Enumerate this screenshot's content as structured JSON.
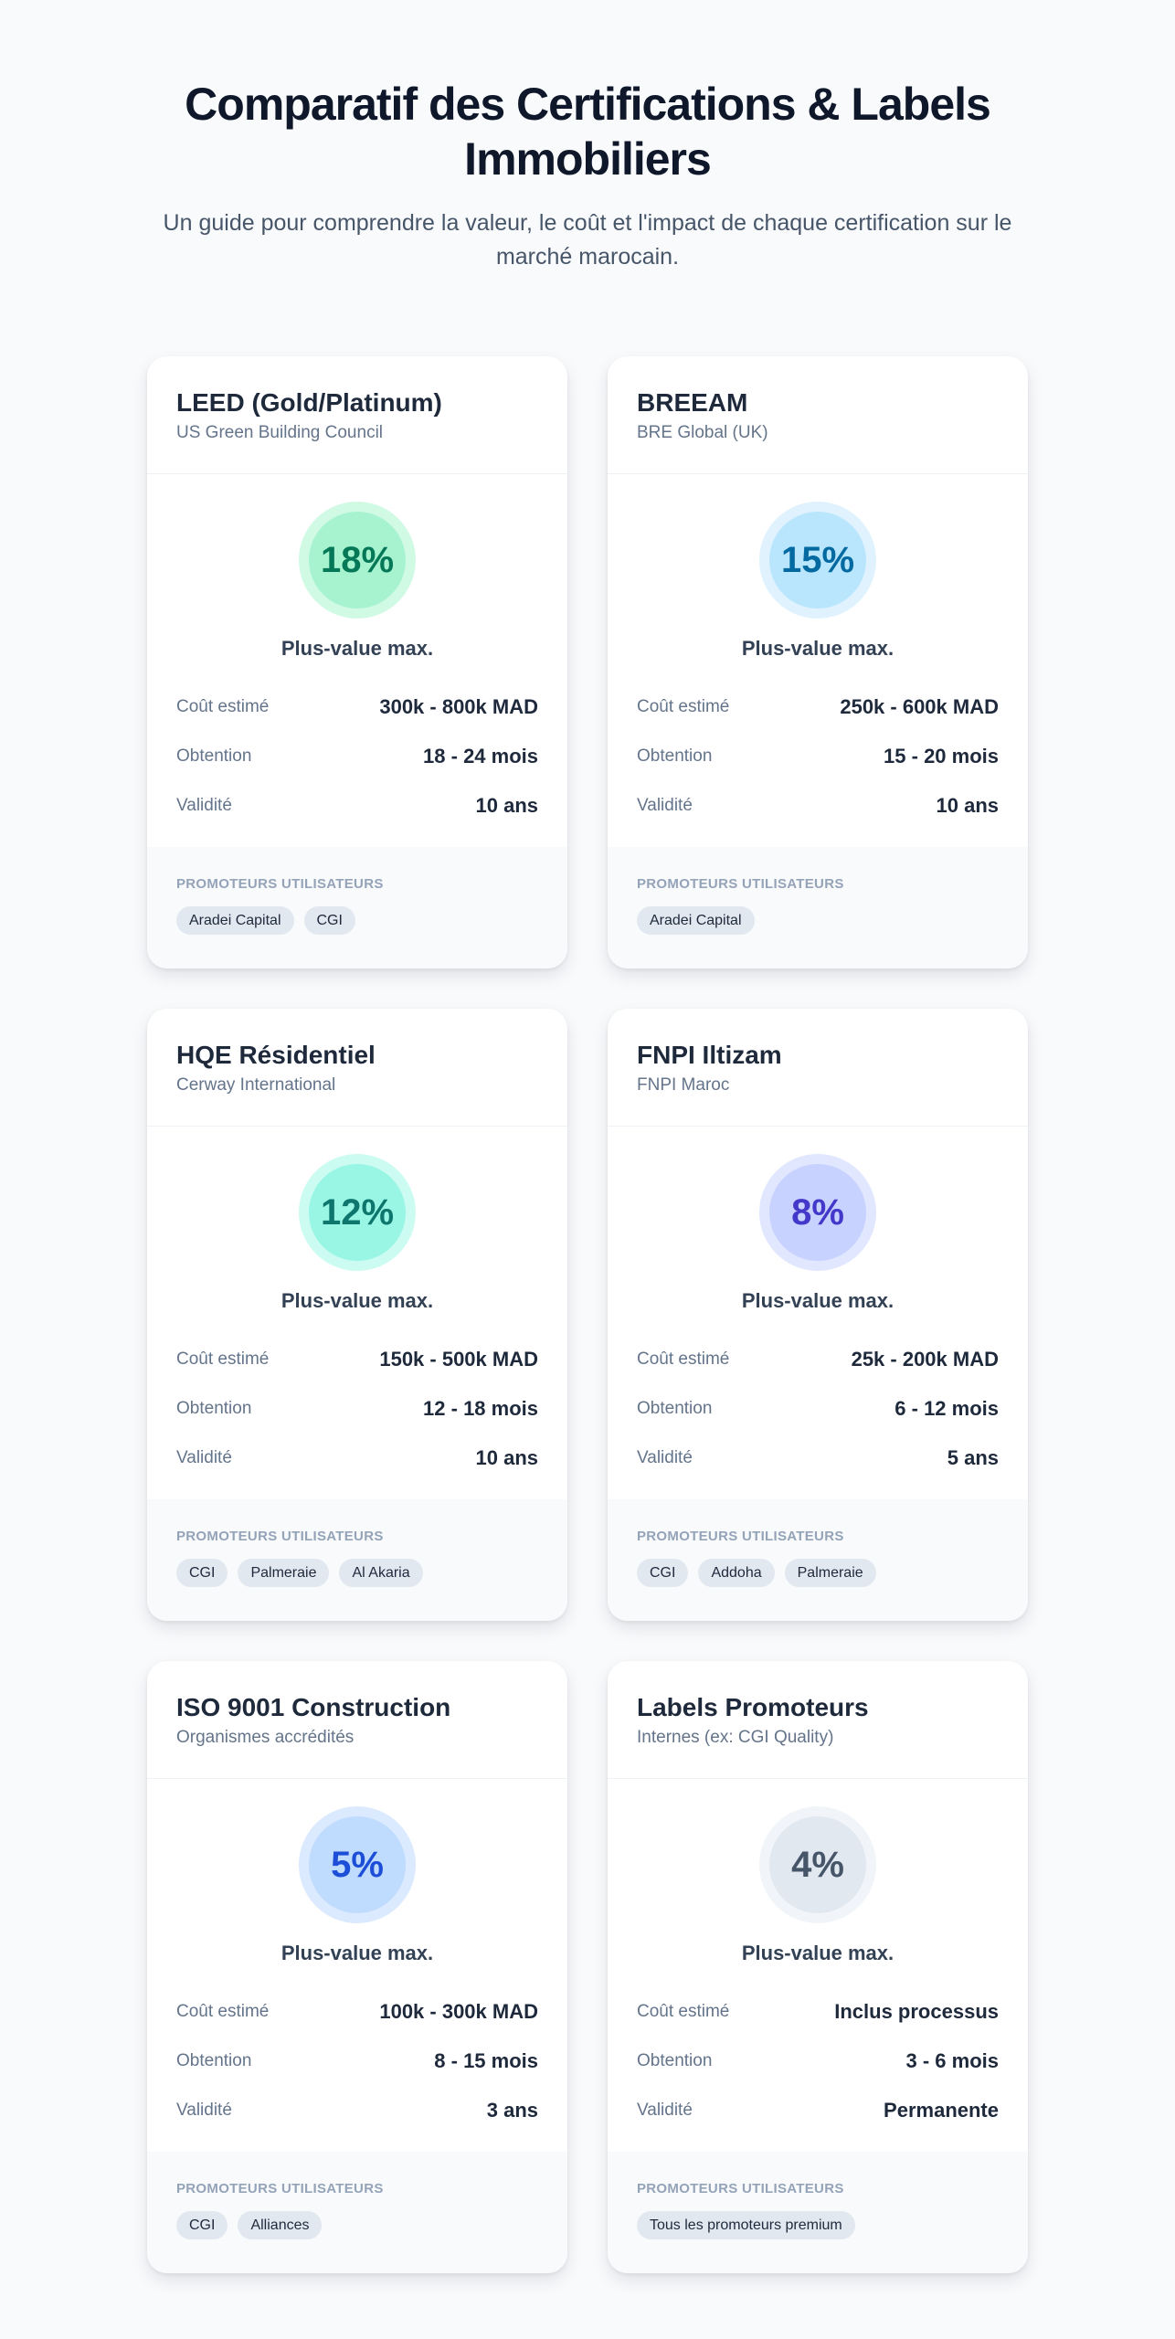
{
  "header": {
    "title": "Comparatif des Certifications & Labels Immobiliers",
    "subtitle": "Un guide pour comprendre la valeur, le coût et l'impact de chaque certification sur le marché marocain."
  },
  "labels": {
    "metric": "Plus-value max.",
    "cost": "Coût estimé",
    "duration": "Obtention",
    "validity": "Validité",
    "users": "PROMOTEURS UTILISATEURS"
  },
  "cards": [
    {
      "title": "LEED (Gold/Platinum)",
      "org": "US Green Building Council",
      "percent": "18%",
      "colors": {
        "ring": "#d1fae5",
        "inner": "#a7f3d0",
        "text": "#047857"
      },
      "cost": "300k - 800k MAD",
      "duration": "18 - 24 mois",
      "validity": "10 ans",
      "tags": [
        "Aradei Capital",
        "CGI"
      ]
    },
    {
      "title": "BREEAM",
      "org": "BRE Global (UK)",
      "percent": "15%",
      "colors": {
        "ring": "#e0f2fe",
        "inner": "#bae6fd",
        "text": "#0369a1"
      },
      "cost": "250k - 600k MAD",
      "duration": "15 - 20 mois",
      "validity": "10 ans",
      "tags": [
        "Aradei Capital"
      ]
    },
    {
      "title": "HQE Résidentiel",
      "org": "Cerway International",
      "percent": "12%",
      "colors": {
        "ring": "#ccfbf1",
        "inner": "#99f6e4",
        "text": "#0f766e"
      },
      "cost": "150k - 500k MAD",
      "duration": "12 - 18 mois",
      "validity": "10 ans",
      "tags": [
        "CGI",
        "Palmeraie",
        "Al Akaria"
      ]
    },
    {
      "title": "FNPI Iltizam",
      "org": "FNPI Maroc",
      "percent": "8%",
      "colors": {
        "ring": "#e0e7ff",
        "inner": "#c7d2fe",
        "text": "#4338ca"
      },
      "cost": "25k - 200k MAD",
      "duration": "6 - 12 mois",
      "validity": "5 ans",
      "tags": [
        "CGI",
        "Addoha",
        "Palmeraie"
      ]
    },
    {
      "title": "ISO 9001 Construction",
      "org": "Organismes accrédités",
      "percent": "5%",
      "colors": {
        "ring": "#dbeafe",
        "inner": "#bfdbfe",
        "text": "#1d4ed8"
      },
      "cost": "100k - 300k MAD",
      "duration": "8 - 15 mois",
      "validity": "3 ans",
      "tags": [
        "CGI",
        "Alliances"
      ]
    },
    {
      "title": "Labels Promoteurs",
      "org": "Internes (ex: CGI Quality)",
      "percent": "4%",
      "colors": {
        "ring": "#f1f5f9",
        "inner": "#e2e8f0",
        "text": "#475569"
      },
      "cost": "Inclus processus",
      "duration": "3 - 6 mois",
      "validity": "Permanente",
      "tags": [
        "Tous les promoteurs premium"
      ]
    }
  ]
}
